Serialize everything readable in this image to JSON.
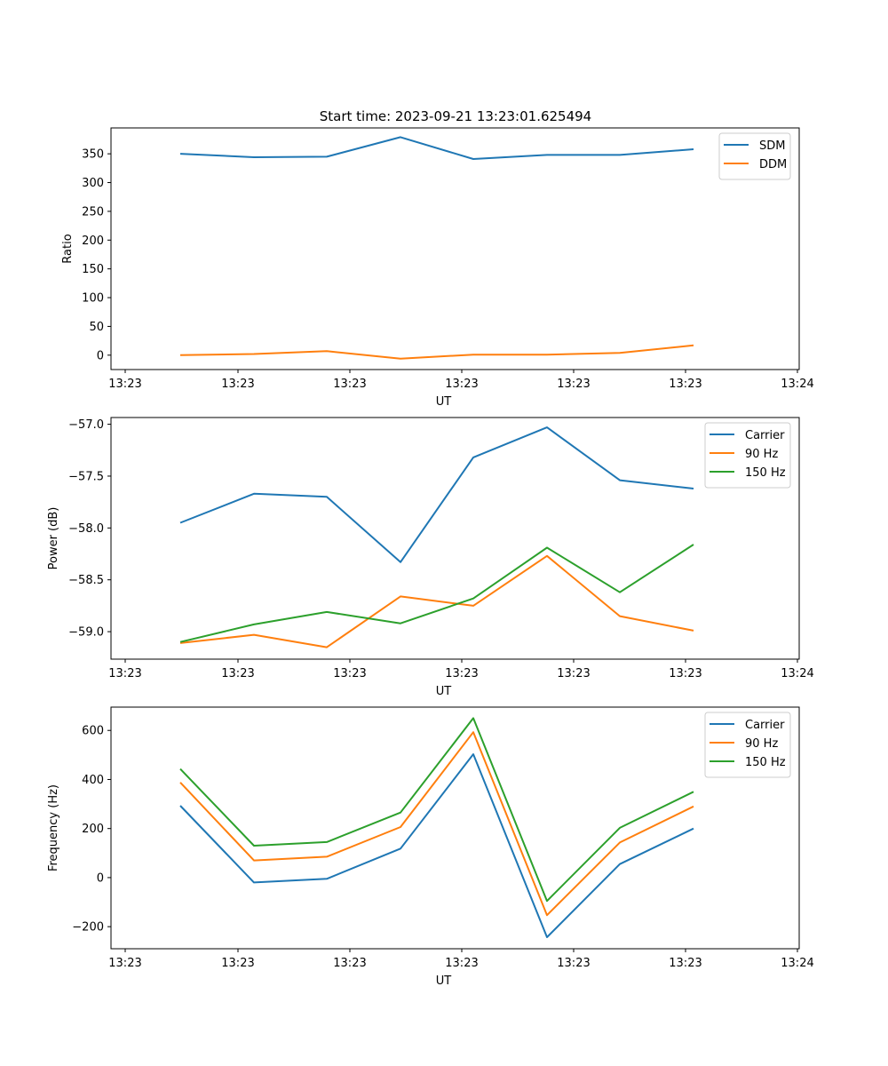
{
  "title": "Start time: 2023-09-21 13:23:01.625494",
  "chart_data": [
    {
      "type": "line",
      "title": "Start time: 2023-09-21 13:23:01.625494",
      "xlabel": "UT",
      "ylabel": "Ratio",
      "xtick_labels": [
        "13:23",
        "13:23",
        "13:23",
        "13:23",
        "13:23",
        "13:23",
        "13:24"
      ],
      "yticks": [
        0,
        50,
        100,
        150,
        200,
        250,
        300,
        350
      ],
      "ylim": [
        -25,
        395
      ],
      "legend": "top-right",
      "x": [
        1,
        2,
        3,
        4,
        5,
        6,
        7,
        8
      ],
      "series": [
        {
          "name": "SDM",
          "color": "#1f77b4",
          "values": [
            350,
            344,
            345,
            379,
            341,
            348,
            348,
            358
          ]
        },
        {
          "name": "DDM",
          "color": "#ff7f0e",
          "values": [
            0,
            2,
            7,
            -6,
            1,
            1,
            4,
            17
          ]
        }
      ]
    },
    {
      "type": "line",
      "title": "",
      "xlabel": "UT",
      "ylabel": "Power (dB)",
      "xtick_labels": [
        "13:23",
        "13:23",
        "13:23",
        "13:23",
        "13:23",
        "13:23",
        "13:24"
      ],
      "yticks": [
        -59.0,
        -58.5,
        -58.0,
        -57.5,
        -57.0
      ],
      "ytick_labels": [
        "−59.0",
        "−58.5",
        "−58.0",
        "−57.5",
        "−57.0"
      ],
      "ylim": [
        -59.265,
        -56.935
      ],
      "legend": "top-right",
      "x": [
        1,
        2,
        3,
        4,
        5,
        6,
        7,
        8
      ],
      "series": [
        {
          "name": "Carrier",
          "color": "#1f77b4",
          "values": [
            -57.95,
            -57.67,
            -57.7,
            -58.33,
            -57.32,
            -57.03,
            -57.54,
            -57.62
          ]
        },
        {
          "name": "90 Hz",
          "color": "#ff7f0e",
          "values": [
            -59.11,
            -59.03,
            -59.15,
            -58.66,
            -58.75,
            -58.27,
            -58.85,
            -58.99
          ]
        },
        {
          "name": "150 Hz",
          "color": "#2ca02c",
          "values": [
            -59.1,
            -58.93,
            -58.81,
            -58.92,
            -58.68,
            -58.19,
            -58.62,
            -58.16
          ]
        }
      ]
    },
    {
      "type": "line",
      "title": "",
      "xlabel": "UT",
      "ylabel": "Frequency (Hz)",
      "xtick_labels": [
        "13:23",
        "13:23",
        "13:23",
        "13:23",
        "13:23",
        "13:23",
        "13:24"
      ],
      "yticks": [
        -200,
        0,
        200,
        400,
        600
      ],
      "ytick_labels": [
        "−200",
        "0",
        "200",
        "400",
        "600"
      ],
      "ylim": [
        -290,
        695
      ],
      "legend": "top-right",
      "x": [
        1,
        2,
        3,
        4,
        5,
        6,
        7,
        8
      ],
      "series": [
        {
          "name": "Carrier",
          "color": "#1f77b4",
          "values": [
            293,
            -20,
            -5,
            118,
            503,
            -243,
            55,
            200
          ]
        },
        {
          "name": "90 Hz",
          "color": "#ff7f0e",
          "values": [
            388,
            70,
            85,
            206,
            593,
            -153,
            143,
            290
          ]
        },
        {
          "name": "150 Hz",
          "color": "#2ca02c",
          "values": [
            443,
            130,
            145,
            265,
            650,
            -95,
            203,
            350
          ]
        }
      ]
    }
  ]
}
